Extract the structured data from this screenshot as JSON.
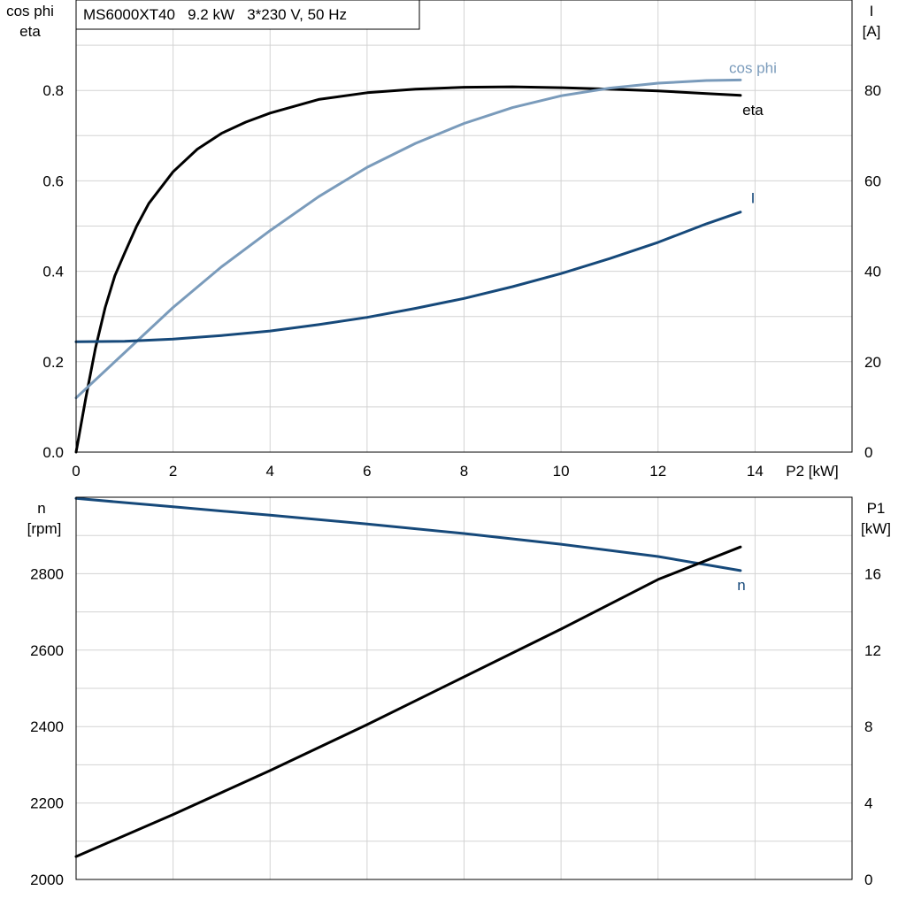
{
  "colors": {
    "eta": "#000000",
    "cos_phi": "#7a9bbb",
    "I": "#16497a",
    "n": "#16497a",
    "P1": "#000000",
    "grid": "#d3d3d3"
  },
  "title_box": {
    "text": "MS6000XT40   9.2 kW   3*230 V, 50 Hz"
  },
  "chart_data": [
    {
      "type": "line",
      "panel": "top",
      "xlabel": "P2 [kW]",
      "xlim": [
        0,
        16
      ],
      "xticks": [
        0,
        2,
        4,
        6,
        8,
        10,
        12,
        14
      ],
      "left_axis": {
        "label_lines": [
          "cos phi",
          "eta"
        ],
        "ylim": [
          0,
          1.0
        ],
        "ticks": [
          "0.0",
          "0.2",
          "0.4",
          "0.6",
          "0.8"
        ]
      },
      "right_axis": {
        "label_lines": [
          "I",
          "[A]"
        ],
        "ylim": [
          0,
          100
        ],
        "ticks": [
          "0",
          "20",
          "40",
          "60",
          "80"
        ]
      },
      "grid": true,
      "series": [
        {
          "name": "eta",
          "axis": "left",
          "x": [
            0,
            0.2,
            0.4,
            0.6,
            0.8,
            1.0,
            1.25,
            1.5,
            2,
            2.5,
            3,
            3.5,
            4,
            5,
            6,
            7,
            8,
            9,
            10,
            11,
            12,
            13,
            13.7
          ],
          "y": [
            0,
            0.12,
            0.23,
            0.32,
            0.39,
            0.44,
            0.5,
            0.55,
            0.62,
            0.67,
            0.705,
            0.73,
            0.75,
            0.78,
            0.795,
            0.803,
            0.807,
            0.808,
            0.806,
            0.803,
            0.799,
            0.793,
            0.789
          ]
        },
        {
          "name": "cos phi",
          "axis": "left",
          "x": [
            0,
            1,
            2,
            3,
            4,
            5,
            6,
            7,
            8,
            9,
            10,
            11,
            12,
            13,
            13.7
          ],
          "y": [
            0.12,
            0.22,
            0.32,
            0.41,
            0.49,
            0.565,
            0.63,
            0.683,
            0.727,
            0.762,
            0.788,
            0.805,
            0.816,
            0.822,
            0.823
          ]
        },
        {
          "name": "I",
          "axis": "right",
          "x": [
            0,
            1,
            2,
            3,
            4,
            5,
            6,
            7,
            8,
            9,
            10,
            11,
            12,
            13,
            13.7
          ],
          "y": [
            24.4,
            24.5,
            25.0,
            25.8,
            26.8,
            28.2,
            29.8,
            31.8,
            34.0,
            36.6,
            39.5,
            42.8,
            46.4,
            50.5,
            53.1
          ]
        }
      ]
    },
    {
      "type": "line",
      "panel": "bottom",
      "xlim": [
        0,
        16
      ],
      "xticks": [
        0,
        2,
        4,
        6,
        8,
        10,
        12,
        14
      ],
      "left_axis": {
        "label_lines": [
          "n",
          "[rpm]"
        ],
        "ylim": [
          2000,
          3000
        ],
        "ticks": [
          "2000",
          "2200",
          "2400",
          "2600",
          "2800"
        ]
      },
      "right_axis": {
        "label_lines": [
          "P1",
          "[kW]"
        ],
        "ylim": [
          0,
          20
        ],
        "ticks": [
          "0",
          "4",
          "8",
          "12",
          "16"
        ]
      },
      "grid": true,
      "series": [
        {
          "name": "n",
          "axis": "left",
          "x": [
            0,
            2,
            4,
            6,
            8,
            10,
            12,
            13.7
          ],
          "y": [
            2997,
            2975,
            2953,
            2930,
            2905,
            2877,
            2845,
            2808
          ]
        },
        {
          "name": "",
          "axis": "right",
          "x": [
            0,
            2,
            4,
            6,
            8,
            10,
            12,
            13.7
          ],
          "y": [
            1.2,
            3.4,
            5.7,
            8.1,
            10.6,
            13.1,
            15.7,
            17.4
          ]
        }
      ]
    }
  ]
}
